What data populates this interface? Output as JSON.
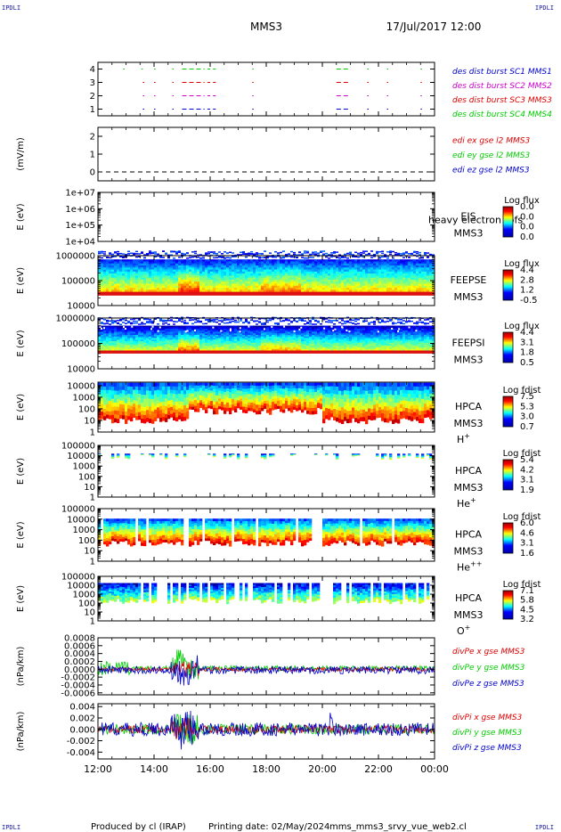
{
  "corners": {
    "tl": "IPDLI",
    "tr": "IPDLI",
    "bl": "IPDLI",
    "br": "IPDLI"
  },
  "header": {
    "spacecraft": "MMS3",
    "datetime": "17/Jul/2017 12:00"
  },
  "footer": {
    "produced_by": "Produced by cl (IRAP)",
    "printing_date": "Printing date: 02/May/2024",
    "filename": "mms_mms3_srvy_vue_web2.cl"
  },
  "colors": {
    "red": "#dd0000",
    "green": "#00cc00",
    "blue": "#0000cc",
    "magenta": "#cc00cc",
    "axis": "#000000"
  },
  "time_axis": {
    "ticks": [
      "12:00",
      "14:00",
      "16:00",
      "18:00",
      "20:00",
      "22:00",
      "00:00"
    ],
    "range_hours": [
      12,
      24
    ]
  },
  "chart_data": [
    {
      "type": "scatter",
      "id": "burst",
      "yticks": [
        "1",
        "2",
        "3",
        "4"
      ],
      "ylim": [
        0.5,
        4.5
      ],
      "legend": [
        {
          "label": "des dist burst SC1 MMS1",
          "color": "#0000cc"
        },
        {
          "label": "des dist burst SC2 MMS2",
          "color": "#cc00cc"
        },
        {
          "label": "des dist burst SC3 MMS3",
          "color": "#dd0000"
        },
        {
          "label": "des dist burst SC4 MMS4",
          "color": "#00cc00"
        }
      ],
      "series": [
        {
          "level": 4,
          "color": "#00cc00",
          "segments": [
            [
              12.9,
              12.95
            ],
            [
              13.55,
              13.6
            ],
            [
              14.0,
              14.05
            ],
            [
              14.65,
              14.7
            ],
            [
              15.0,
              15.8
            ],
            [
              15.9,
              16.0
            ],
            [
              16.1,
              16.2
            ],
            [
              17.5,
              17.55
            ],
            [
              20.5,
              21.0
            ],
            [
              21.6,
              21.65
            ],
            [
              22.3,
              22.35
            ],
            [
              23.5,
              23.55
            ]
          ]
        },
        {
          "level": 3,
          "color": "#dd0000",
          "segments": [
            [
              13.6,
              13.65
            ],
            [
              14.0,
              14.05
            ],
            [
              14.65,
              14.7
            ],
            [
              15.0,
              15.8
            ],
            [
              15.9,
              16.0
            ],
            [
              16.1,
              16.2
            ],
            [
              17.5,
              17.55
            ],
            [
              20.5,
              21.0
            ],
            [
              21.6,
              21.65
            ],
            [
              22.3,
              22.35
            ],
            [
              23.5,
              23.55
            ]
          ]
        },
        {
          "level": 2,
          "color": "#cc00cc",
          "segments": [
            [
              13.6,
              13.65
            ],
            [
              14.0,
              14.05
            ],
            [
              14.65,
              14.7
            ],
            [
              15.0,
              15.8
            ],
            [
              15.9,
              16.0
            ],
            [
              16.1,
              16.2
            ],
            [
              17.5,
              17.55
            ],
            [
              20.5,
              21.0
            ],
            [
              21.6,
              21.65
            ],
            [
              22.3,
              22.35
            ],
            [
              23.5,
              23.55
            ]
          ]
        },
        {
          "level": 1,
          "color": "#0000cc",
          "segments": [
            [
              13.6,
              13.65
            ],
            [
              14.0,
              14.05
            ],
            [
              14.65,
              14.7
            ],
            [
              15.0,
              15.8
            ],
            [
              15.9,
              16.0
            ],
            [
              16.1,
              16.2
            ],
            [
              17.5,
              17.55
            ],
            [
              20.5,
              21.0
            ],
            [
              21.6,
              21.65
            ],
            [
              22.3,
              22.35
            ],
            [
              23.5,
              23.55
            ]
          ]
        }
      ]
    },
    {
      "type": "line",
      "id": "edi",
      "ylabel": "(mV/m)",
      "yticks": [
        "0",
        "1",
        "2"
      ],
      "ylim": [
        -0.5,
        2.5
      ],
      "zero_line": true,
      "legend": [
        {
          "label": "edi ex gse l2 MMS3",
          "color": "#dd0000"
        },
        {
          "label": "edi ey gse l2 MMS3",
          "color": "#00cc00"
        },
        {
          "label": "edi ez gse l2 MMS3",
          "color": "#0000cc"
        }
      ]
    },
    {
      "type": "heatmap",
      "id": "eis",
      "ylabel": "E (eV)",
      "yticks": [
        "1e+04",
        "1e+05",
        "1e+06",
        "1e+07"
      ],
      "ylog": [
        4,
        7
      ],
      "instrument": "EIS",
      "instrument_overlay": "heavy electron tofs",
      "spacecraft": "MMS3",
      "colorbar_title": "Log flux",
      "colorbar_ticks": [
        "0.0",
        "0.0",
        "0.0",
        "0.0"
      ],
      "empty": true
    },
    {
      "type": "heatmap",
      "id": "feepse",
      "ylabel": "E (eV)",
      "yticks": [
        "10000",
        "100000",
        "1000000"
      ],
      "ylog": [
        4,
        6
      ],
      "instrument": "FEEPSE",
      "spacecraft": "MMS3",
      "colorbar_title": "Log flux",
      "colorbar_ticks": [
        "4.4",
        "2.8",
        "1.2",
        "-0.5"
      ],
      "upper_cut": 5.85,
      "red_band": [
        4.4,
        4.55
      ]
    },
    {
      "type": "heatmap",
      "id": "feepsi",
      "ylabel": "E (eV)",
      "yticks": [
        "10000",
        "100000",
        "1000000"
      ],
      "ylog": [
        4,
        6
      ],
      "instrument": "FEEPSI",
      "spacecraft": "MMS3",
      "colorbar_title": "Log flux",
      "colorbar_ticks": [
        "4.4",
        "3.1",
        "1.8",
        "0.5"
      ],
      "upper_cut": 5.7,
      "red_band": [
        4.6,
        4.72
      ]
    },
    {
      "type": "heatmap",
      "id": "hpca_h",
      "ylabel": "E (eV)",
      "yticks": [
        "1",
        "10",
        "100",
        "1000",
        "10000"
      ],
      "ylog": [
        0,
        4.3
      ],
      "instrument": "HPCA",
      "spacecraft": "MMS3",
      "species": "H",
      "species_sup": "+",
      "colorbar_title": "Log fdist",
      "colorbar_ticks": [
        "7.5",
        "5.3",
        "3.0",
        "0.7"
      ]
    },
    {
      "type": "heatmap",
      "id": "hpca_he",
      "ylabel": "E (eV)",
      "yticks": [
        "1",
        "10",
        "100",
        "1000",
        "10000",
        "100000"
      ],
      "ylog": [
        0,
        5
      ],
      "instrument": "HPCA",
      "spacecraft": "MMS3",
      "species": "He",
      "species_sup": "+",
      "colorbar_title": "Log fdist",
      "colorbar_ticks": [
        "5.4",
        "4.2",
        "3.1",
        "1.9"
      ]
    },
    {
      "type": "heatmap",
      "id": "hpca_he2",
      "ylabel": "E (eV)",
      "yticks": [
        "1",
        "10",
        "100",
        "1000",
        "10000",
        "100000"
      ],
      "ylog": [
        0,
        5
      ],
      "instrument": "HPCA",
      "spacecraft": "MMS3",
      "species": "He",
      "species_sup": "++",
      "colorbar_title": "Log fdist",
      "colorbar_ticks": [
        "6.0",
        "4.6",
        "3.1",
        "1.6"
      ]
    },
    {
      "type": "heatmap",
      "id": "hpca_o",
      "ylabel": "E (eV)",
      "yticks": [
        "1",
        "10",
        "100",
        "1000",
        "10000",
        "100000"
      ],
      "ylog": [
        0,
        5
      ],
      "instrument": "HPCA",
      "spacecraft": "MMS3",
      "species": "O",
      "species_sup": "+",
      "colorbar_title": "Log fdist",
      "colorbar_ticks": [
        "7.1",
        "5.8",
        "4.5",
        "3.2"
      ]
    },
    {
      "type": "line",
      "id": "divpe",
      "ylabel": "(nPa/km)",
      "yticks": [
        "-0.0006",
        "-0.0004",
        "-0.0002",
        "0.0000",
        "0.0002",
        "0.0004",
        "0.0006",
        "0.0008"
      ],
      "ylim": [
        -0.00065,
        0.0008
      ],
      "legend": [
        {
          "label": "divPe x gse MMS3",
          "color": "#dd0000"
        },
        {
          "label": "divPe y gse MMS3",
          "color": "#00cc00"
        },
        {
          "label": "divPe z gse MMS3",
          "color": "#0000cc"
        }
      ]
    },
    {
      "type": "line",
      "id": "divpi",
      "ylabel": "(nPa/km)",
      "yticks": [
        "-0.004",
        "-0.002",
        "0.000",
        "0.002",
        "0.004"
      ],
      "ylim": [
        -0.0052,
        0.0045
      ],
      "legend": [
        {
          "label": "divPi x gse MMS3",
          "color": "#dd0000"
        },
        {
          "label": "divPi y gse MMS3",
          "color": "#00cc00"
        },
        {
          "label": "divPi z gse MMS3",
          "color": "#0000cc"
        }
      ]
    }
  ]
}
